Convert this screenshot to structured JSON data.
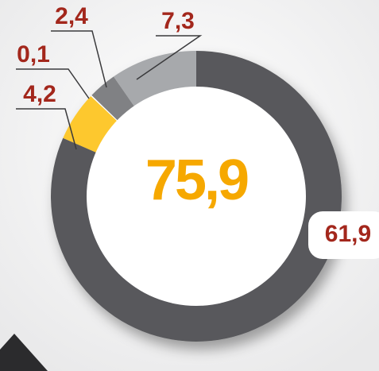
{
  "chart_data": {
    "type": "donut",
    "values": [
      61.9,
      4.2,
      0.1,
      2.4,
      7.3
    ],
    "value_labels": [
      "61,9",
      "4,2",
      "0,1",
      "2,4",
      "7,3"
    ],
    "colors": [
      "#58595b",
      "#fdc82f",
      "#ffffff",
      "#808184",
      "#a7a9ac"
    ],
    "center_label": "75,9"
  }
}
